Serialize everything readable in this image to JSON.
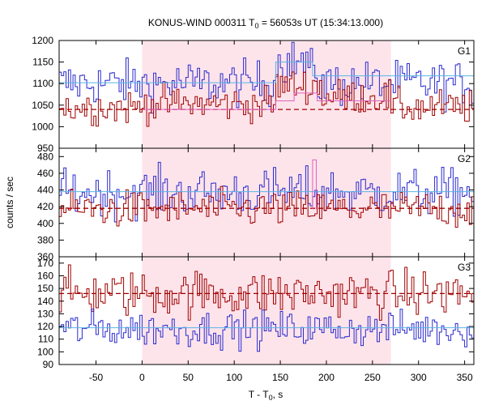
{
  "chart_data": {
    "type": "line",
    "title": "KONUS-WIND 000311 T",
    "title_sub": "0",
    "title_rest": " = 56053s UT (15:34:13.000)",
    "xlabel": "T - T",
    "xlabel_sub": "0",
    "xlabel_rest": ", s",
    "ylabel": "counts / sec",
    "xlim": [
      -90,
      360
    ],
    "x_ticks": [
      -50,
      0,
      50,
      100,
      150,
      200,
      250,
      300,
      350
    ],
    "x_tick_labels": [
      "-50",
      "0",
      "50",
      "100",
      "150",
      "200",
      "250",
      "300",
      "350"
    ],
    "highlight_interval": [
      0,
      270
    ],
    "colors": {
      "blue": "#2a2ad0",
      "red": "#a00000",
      "bg_blue": "#5ab4e6",
      "bg_red": "#a00000",
      "highlight": "#fde4ea",
      "fit_pink": "#e060c0"
    },
    "panels": [
      {
        "label": "G1",
        "ylim": [
          950,
          1200
        ],
        "y_ticks": [
          950,
          1000,
          1050,
          1100,
          1150,
          1200
        ],
        "y_tick_labels": [
          "950",
          "1000",
          "1050",
          "1100",
          "1150",
          "1200"
        ],
        "series": [
          {
            "color": "blue",
            "mean": 1100,
            "noise": 26,
            "bumps": [
              {
                "from": 145,
                "to": 178,
                "add": 50
              },
              {
                "from": 178,
                "to": 190,
                "add": 25
              }
            ]
          },
          {
            "color": "red",
            "mean": 1045,
            "noise": 20,
            "bumps": [
              {
                "from": 0,
                "to": 145,
                "add": 8
              },
              {
                "from": 145,
                "to": 195,
                "add": 50
              },
              {
                "from": 195,
                "to": 270,
                "add": 25
              }
            ]
          }
        ],
        "background_lines": [
          {
            "color": "bg_blue",
            "style": "solid",
            "steps": [
              {
                "from": -90,
                "to": 145,
                "y": 1102
              },
              {
                "from": 145,
                "to": 185,
                "y": 1150
              },
              {
                "from": 185,
                "to": 270,
                "y": 1118
              },
              {
                "from": 270,
                "to": 360,
                "y": 1118
              }
            ]
          },
          {
            "color": "bg_red",
            "style": "dashed",
            "steps": [
              {
                "from": -90,
                "to": 360,
                "y": 1040
              }
            ]
          },
          {
            "color": "fit_pink",
            "style": "solid",
            "steps": [
              {
                "from": 0,
                "to": 145,
                "y": 1040
              },
              {
                "from": 145,
                "to": 165,
                "y": 1060
              },
              {
                "from": 165,
                "to": 190,
                "y": 1078
              },
              {
                "from": 190,
                "to": 270,
                "y": 1060
              }
            ]
          }
        ]
      },
      {
        "label": "G2",
        "ylim": [
          360,
          490
        ],
        "y_ticks": [
          360,
          380,
          400,
          420,
          440,
          460,
          480
        ],
        "y_tick_labels": [
          "360",
          "380",
          "400",
          "420",
          "440",
          "460",
          "480"
        ],
        "series": [
          {
            "color": "blue",
            "mean": 437,
            "noise": 14,
            "bumps": []
          },
          {
            "color": "red",
            "mean": 417,
            "noise": 11,
            "bumps": []
          }
        ],
        "background_lines": [
          {
            "color": "bg_blue",
            "style": "solid",
            "steps": [
              {
                "from": -90,
                "to": 360,
                "y": 438
              }
            ]
          },
          {
            "color": "bg_red",
            "style": "dashed",
            "steps": [
              {
                "from": -90,
                "to": 360,
                "y": 418
              }
            ]
          }
        ],
        "spike": {
          "x": 185,
          "width": 4,
          "y": 476,
          "color": "fit_pink"
        }
      },
      {
        "label": "G3",
        "ylim": [
          90,
          175
        ],
        "y_ticks": [
          90,
          100,
          110,
          120,
          130,
          140,
          150,
          160,
          170
        ],
        "y_tick_labels": [
          "90",
          "100",
          "110",
          "120",
          "130",
          "140",
          "150",
          "160",
          "170"
        ],
        "series": [
          {
            "color": "red",
            "mean": 146,
            "noise": 9,
            "bumps": []
          },
          {
            "color": "blue",
            "mean": 118,
            "noise": 7,
            "bumps": []
          }
        ],
        "background_lines": [
          {
            "color": "bg_blue",
            "style": "solid",
            "steps": [
              {
                "from": -90,
                "to": 360,
                "y": 119
              }
            ]
          },
          {
            "color": "bg_red",
            "style": "dashed",
            "steps": [
              {
                "from": -90,
                "to": 360,
                "y": 146
              }
            ]
          }
        ]
      }
    ]
  }
}
